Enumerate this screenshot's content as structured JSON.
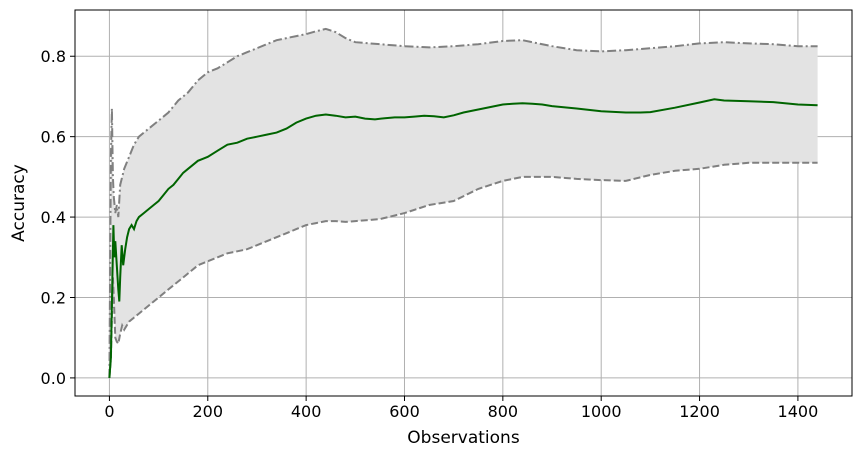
{
  "chart_data": {
    "type": "line",
    "title": "",
    "xlabel": "Observations",
    "ylabel": "Accuracy",
    "xlim": [
      -70,
      1510
    ],
    "ylim": [
      -0.045,
      0.915
    ],
    "xticks": [
      0,
      200,
      400,
      600,
      800,
      1000,
      1200,
      1400
    ],
    "yticks": [
      0.0,
      0.2,
      0.4,
      0.6,
      0.8
    ],
    "ytick_labels": [
      "0.0",
      "0.2",
      "0.4",
      "0.6",
      "0.8"
    ],
    "grid": true,
    "colors": {
      "mean": "#006400",
      "bound": "#808080",
      "band": "#e3e3e3",
      "grid": "#b0b0b0"
    },
    "series": [
      {
        "role": "mean",
        "style": "solid",
        "x": [
          0,
          3,
          6,
          8,
          10,
          12,
          14,
          16,
          18,
          20,
          22,
          25,
          28,
          32,
          36,
          40,
          45,
          50,
          55,
          60,
          70,
          80,
          90,
          100,
          110,
          120,
          130,
          140,
          150,
          160,
          170,
          180,
          190,
          200,
          220,
          240,
          260,
          280,
          300,
          320,
          340,
          360,
          380,
          400,
          420,
          440,
          460,
          480,
          500,
          520,
          540,
          560,
          580,
          600,
          620,
          640,
          660,
          680,
          700,
          720,
          740,
          760,
          780,
          800,
          820,
          840,
          860,
          880,
          900,
          950,
          1000,
          1050,
          1080,
          1100,
          1150,
          1200,
          1230,
          1250,
          1300,
          1350,
          1400,
          1440
        ],
        "y": [
          0.0,
          0.05,
          0.25,
          0.38,
          0.3,
          0.34,
          0.3,
          0.26,
          0.22,
          0.19,
          0.25,
          0.33,
          0.28,
          0.32,
          0.35,
          0.37,
          0.38,
          0.37,
          0.39,
          0.4,
          0.41,
          0.42,
          0.43,
          0.44,
          0.455,
          0.47,
          0.48,
          0.495,
          0.51,
          0.52,
          0.53,
          0.54,
          0.545,
          0.55,
          0.565,
          0.58,
          0.585,
          0.595,
          0.6,
          0.605,
          0.61,
          0.62,
          0.635,
          0.645,
          0.652,
          0.655,
          0.652,
          0.648,
          0.65,
          0.645,
          0.643,
          0.646,
          0.648,
          0.648,
          0.65,
          0.652,
          0.651,
          0.648,
          0.653,
          0.66,
          0.665,
          0.67,
          0.675,
          0.68,
          0.682,
          0.683,
          0.682,
          0.68,
          0.676,
          0.67,
          0.663,
          0.66,
          0.66,
          0.661,
          0.672,
          0.685,
          0.693,
          0.69,
          0.688,
          0.686,
          0.68,
          0.678
        ]
      },
      {
        "role": "upper",
        "style": "dashdot",
        "x": [
          0,
          3,
          5,
          7,
          9,
          12,
          15,
          18,
          22,
          26,
          30,
          40,
          50,
          60,
          70,
          80,
          100,
          120,
          140,
          160,
          180,
          200,
          220,
          240,
          260,
          280,
          300,
          320,
          340,
          360,
          380,
          400,
          420,
          440,
          460,
          480,
          500,
          550,
          600,
          650,
          700,
          750,
          800,
          840,
          860,
          900,
          950,
          1000,
          1050,
          1100,
          1150,
          1200,
          1250,
          1300,
          1350,
          1400,
          1440
        ],
        "y": [
          0.0,
          0.55,
          0.67,
          0.5,
          0.45,
          0.41,
          0.43,
          0.4,
          0.48,
          0.5,
          0.52,
          0.55,
          0.58,
          0.6,
          0.61,
          0.62,
          0.64,
          0.66,
          0.69,
          0.71,
          0.74,
          0.76,
          0.77,
          0.785,
          0.8,
          0.81,
          0.82,
          0.83,
          0.84,
          0.845,
          0.85,
          0.855,
          0.862,
          0.868,
          0.86,
          0.845,
          0.835,
          0.83,
          0.825,
          0.822,
          0.825,
          0.83,
          0.838,
          0.84,
          0.835,
          0.825,
          0.815,
          0.812,
          0.815,
          0.82,
          0.825,
          0.832,
          0.835,
          0.832,
          0.83,
          0.825,
          0.825
        ]
      },
      {
        "role": "lower",
        "style": "dashed",
        "x": [
          0,
          3,
          5,
          7,
          9,
          12,
          15,
          18,
          22,
          26,
          30,
          40,
          50,
          60,
          70,
          80,
          100,
          120,
          140,
          160,
          180,
          200,
          220,
          240,
          260,
          280,
          300,
          320,
          340,
          360,
          380,
          400,
          420,
          440,
          460,
          480,
          500,
          550,
          600,
          650,
          700,
          750,
          800,
          840,
          860,
          900,
          950,
          1000,
          1050,
          1100,
          1150,
          1200,
          1250,
          1300,
          1350,
          1400,
          1440
        ],
        "y": [
          0.0,
          0.05,
          0.15,
          0.25,
          0.2,
          0.1,
          0.09,
          0.085,
          0.11,
          0.13,
          0.12,
          0.14,
          0.15,
          0.16,
          0.17,
          0.18,
          0.2,
          0.22,
          0.24,
          0.26,
          0.28,
          0.29,
          0.3,
          0.31,
          0.315,
          0.32,
          0.33,
          0.34,
          0.35,
          0.36,
          0.37,
          0.38,
          0.385,
          0.39,
          0.39,
          0.388,
          0.39,
          0.395,
          0.41,
          0.43,
          0.44,
          0.47,
          0.49,
          0.5,
          0.5,
          0.5,
          0.495,
          0.492,
          0.49,
          0.505,
          0.515,
          0.52,
          0.53,
          0.535,
          0.535,
          0.535,
          0.535
        ]
      }
    ]
  }
}
